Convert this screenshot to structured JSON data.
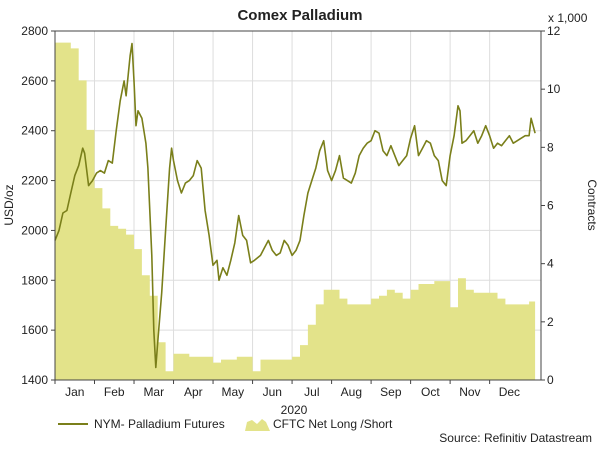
{
  "colors": {
    "price_line": "#7a7f1a",
    "net_area": "#e3e38a",
    "gridline": "#dddddd",
    "axis": "#444444",
    "text": "#222222"
  },
  "chart_data": {
    "type": "line",
    "title": "Comex Palladium",
    "xlabel": "2020",
    "ylabel_left": "USD/oz",
    "ylabel_right": "Contracts",
    "right_axis_multiplier": "x 1,000",
    "source": "Source: Refinitiv Datastream",
    "x_tick_labels": [
      "Jan",
      "Feb",
      "Mar",
      "Apr",
      "May",
      "Jun",
      "Jul",
      "Aug",
      "Sep",
      "Oct",
      "Nov",
      "Dec"
    ],
    "y_left_ticks": [
      "1400",
      "1600",
      "1800",
      "2000",
      "2200",
      "2400",
      "2600",
      "2800"
    ],
    "y_right_ticks": [
      "0",
      "2",
      "4",
      "6",
      "8",
      "10",
      "12"
    ],
    "y_left_range": [
      1400,
      2800
    ],
    "y_right_range": [
      0,
      12
    ],
    "x_range_months": [
      0.0,
      12.3
    ],
    "grid": true,
    "legend_position": "bottom",
    "series": [
      {
        "name": "NYM- Palladium Futures",
        "type": "line",
        "axis": "left",
        "points": [
          [
            0.0,
            1960
          ],
          [
            0.1,
            2000
          ],
          [
            0.2,
            2070
          ],
          [
            0.3,
            2080
          ],
          [
            0.4,
            2150
          ],
          [
            0.5,
            2220
          ],
          [
            0.6,
            2260
          ],
          [
            0.7,
            2330
          ],
          [
            0.75,
            2310
          ],
          [
            0.85,
            2180
          ],
          [
            0.95,
            2200
          ],
          [
            1.05,
            2230
          ],
          [
            1.15,
            2240
          ],
          [
            1.25,
            2230
          ],
          [
            1.35,
            2280
          ],
          [
            1.45,
            2270
          ],
          [
            1.55,
            2400
          ],
          [
            1.65,
            2520
          ],
          [
            1.75,
            2600
          ],
          [
            1.8,
            2540
          ],
          [
            1.9,
            2700
          ],
          [
            1.95,
            2750
          ],
          [
            2.0,
            2600
          ],
          [
            2.05,
            2420
          ],
          [
            2.1,
            2480
          ],
          [
            2.2,
            2450
          ],
          [
            2.3,
            2350
          ],
          [
            2.35,
            2250
          ],
          [
            2.45,
            1900
          ],
          [
            2.5,
            1600
          ],
          [
            2.55,
            1450
          ],
          [
            2.6,
            1550
          ],
          [
            2.7,
            1750
          ],
          [
            2.8,
            2000
          ],
          [
            2.9,
            2250
          ],
          [
            2.95,
            2330
          ],
          [
            3.0,
            2280
          ],
          [
            3.1,
            2200
          ],
          [
            3.2,
            2150
          ],
          [
            3.3,
            2190
          ],
          [
            3.4,
            2200
          ],
          [
            3.5,
            2220
          ],
          [
            3.6,
            2280
          ],
          [
            3.7,
            2250
          ],
          [
            3.8,
            2080
          ],
          [
            3.9,
            1980
          ],
          [
            4.0,
            1860
          ],
          [
            4.1,
            1880
          ],
          [
            4.15,
            1800
          ],
          [
            4.25,
            1850
          ],
          [
            4.35,
            1820
          ],
          [
            4.45,
            1880
          ],
          [
            4.55,
            1950
          ],
          [
            4.65,
            2060
          ],
          [
            4.75,
            1980
          ],
          [
            4.85,
            1960
          ],
          [
            4.95,
            1870
          ],
          [
            5.05,
            1880
          ],
          [
            5.2,
            1900
          ],
          [
            5.3,
            1930
          ],
          [
            5.4,
            1960
          ],
          [
            5.5,
            1920
          ],
          [
            5.6,
            1900
          ],
          [
            5.7,
            1910
          ],
          [
            5.8,
            1960
          ],
          [
            5.9,
            1940
          ],
          [
            6.0,
            1900
          ],
          [
            6.1,
            1920
          ],
          [
            6.2,
            1960
          ],
          [
            6.3,
            2060
          ],
          [
            6.4,
            2150
          ],
          [
            6.5,
            2200
          ],
          [
            6.6,
            2250
          ],
          [
            6.7,
            2320
          ],
          [
            6.8,
            2360
          ],
          [
            6.9,
            2240
          ],
          [
            7.0,
            2200
          ],
          [
            7.1,
            2240
          ],
          [
            7.2,
            2300
          ],
          [
            7.3,
            2210
          ],
          [
            7.4,
            2200
          ],
          [
            7.5,
            2190
          ],
          [
            7.6,
            2230
          ],
          [
            7.7,
            2300
          ],
          [
            7.8,
            2330
          ],
          [
            7.9,
            2350
          ],
          [
            8.0,
            2360
          ],
          [
            8.1,
            2400
          ],
          [
            8.2,
            2390
          ],
          [
            8.3,
            2320
          ],
          [
            8.4,
            2300
          ],
          [
            8.5,
            2340
          ],
          [
            8.6,
            2300
          ],
          [
            8.7,
            2260
          ],
          [
            8.8,
            2280
          ],
          [
            8.9,
            2300
          ],
          [
            9.0,
            2370
          ],
          [
            9.1,
            2420
          ],
          [
            9.2,
            2300
          ],
          [
            9.3,
            2330
          ],
          [
            9.4,
            2360
          ],
          [
            9.5,
            2350
          ],
          [
            9.6,
            2300
          ],
          [
            9.7,
            2280
          ],
          [
            9.8,
            2200
          ],
          [
            9.9,
            2180
          ],
          [
            10.0,
            2300
          ],
          [
            10.1,
            2380
          ],
          [
            10.2,
            2500
          ],
          [
            10.25,
            2480
          ],
          [
            10.3,
            2350
          ],
          [
            10.4,
            2360
          ],
          [
            10.5,
            2380
          ],
          [
            10.6,
            2400
          ],
          [
            10.7,
            2350
          ],
          [
            10.8,
            2380
          ],
          [
            10.9,
            2420
          ],
          [
            11.0,
            2380
          ],
          [
            11.1,
            2330
          ],
          [
            11.2,
            2350
          ],
          [
            11.3,
            2340
          ],
          [
            11.4,
            2360
          ],
          [
            11.5,
            2380
          ],
          [
            11.6,
            2350
          ],
          [
            11.7,
            2360
          ],
          [
            11.8,
            2370
          ],
          [
            11.9,
            2380
          ],
          [
            12.0,
            2380
          ],
          [
            12.05,
            2450
          ],
          [
            12.15,
            2390
          ]
        ]
      },
      {
        "name": "CFTC Net Long /Short",
        "type": "area",
        "axis": "right",
        "points": [
          [
            0.0,
            11.6
          ],
          [
            0.2,
            11.6
          ],
          [
            0.4,
            11.4
          ],
          [
            0.6,
            10.3
          ],
          [
            0.8,
            8.6
          ],
          [
            1.0,
            6.6
          ],
          [
            1.2,
            5.9
          ],
          [
            1.4,
            5.3
          ],
          [
            1.6,
            5.2
          ],
          [
            1.8,
            5.0
          ],
          [
            2.0,
            4.5
          ],
          [
            2.2,
            3.6
          ],
          [
            2.4,
            2.9
          ],
          [
            2.6,
            1.3
          ],
          [
            2.8,
            0.3
          ],
          [
            3.0,
            0.9
          ],
          [
            3.2,
            0.9
          ],
          [
            3.4,
            0.8
          ],
          [
            3.6,
            0.8
          ],
          [
            3.8,
            0.8
          ],
          [
            4.0,
            0.6
          ],
          [
            4.2,
            0.7
          ],
          [
            4.4,
            0.7
          ],
          [
            4.6,
            0.8
          ],
          [
            4.8,
            0.8
          ],
          [
            5.0,
            0.3
          ],
          [
            5.2,
            0.7
          ],
          [
            5.4,
            0.7
          ],
          [
            5.6,
            0.7
          ],
          [
            5.8,
            0.7
          ],
          [
            6.0,
            0.8
          ],
          [
            6.2,
            1.2
          ],
          [
            6.4,
            1.9
          ],
          [
            6.6,
            2.6
          ],
          [
            6.8,
            3.1
          ],
          [
            7.0,
            3.1
          ],
          [
            7.2,
            2.8
          ],
          [
            7.4,
            2.6
          ],
          [
            7.6,
            2.6
          ],
          [
            7.8,
            2.6
          ],
          [
            8.0,
            2.8
          ],
          [
            8.2,
            2.9
          ],
          [
            8.4,
            3.1
          ],
          [
            8.6,
            3.0
          ],
          [
            8.8,
            2.8
          ],
          [
            9.0,
            3.1
          ],
          [
            9.2,
            3.3
          ],
          [
            9.4,
            3.3
          ],
          [
            9.6,
            3.4
          ],
          [
            9.8,
            3.4
          ],
          [
            10.0,
            2.5
          ],
          [
            10.2,
            3.5
          ],
          [
            10.4,
            3.1
          ],
          [
            10.6,
            3.0
          ],
          [
            10.8,
            3.0
          ],
          [
            11.0,
            3.0
          ],
          [
            11.2,
            2.8
          ],
          [
            11.4,
            2.6
          ],
          [
            11.6,
            2.6
          ],
          [
            11.8,
            2.6
          ],
          [
            12.0,
            2.7
          ],
          [
            12.15,
            2.7
          ]
        ]
      }
    ]
  }
}
